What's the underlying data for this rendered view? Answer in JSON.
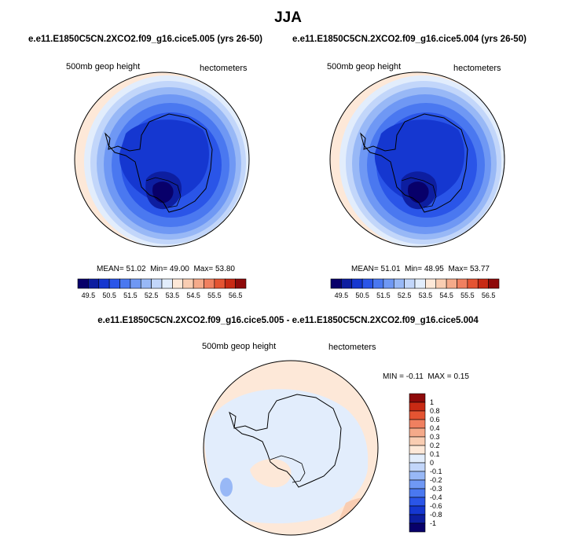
{
  "title": "JJA",
  "panels": [
    {
      "case": "e.e11.E1850C5CN.2XCO2.f09_g16.cice5.005 (yrs 26-50)",
      "variable": "500mb geop height",
      "units": "hectometers",
      "stats": {
        "mean": "51.02",
        "min": "49.00",
        "max": "53.80"
      }
    },
    {
      "case": "e.e11.E1850C5CN.2XCO2.f09_g16.cice5.004 (yrs 26-50)",
      "variable": "500mb geop height",
      "units": "hectometers",
      "stats": {
        "mean": "51.01",
        "min": "48.95",
        "max": "53.77"
      }
    },
    {
      "case": "e.e11.E1850C5CN.2XCO2.f09_g16.cice5.005 - e.e11.E1850C5CN.2XCO2.f09_g16.cice5.004",
      "variable": "500mb geop height",
      "units": "hectometers",
      "stats": {
        "min": "-0.11",
        "max": "0.15"
      }
    }
  ],
  "labels": {
    "mean": "MEAN=",
    "min": "Min=",
    "max": "Max=",
    "min_upper": "MIN =",
    "max_upper": "MAX ="
  },
  "colors": {
    "abs_bins": [
      "#08006a",
      "#0d1ea0",
      "#1537d0",
      "#2a55e8",
      "#4a78f0",
      "#6f98f4",
      "#98b8f6",
      "#c2d6fa",
      "#e2edfc",
      "#fde8d8",
      "#f9cdb2",
      "#f5aa8a",
      "#f08060",
      "#e45432",
      "#c82a14",
      "#8e0a0a"
    ],
    "diff_bins": [
      "#08006a",
      "#0d1ea0",
      "#1537d0",
      "#2a55e8",
      "#4a78f0",
      "#6f98f4",
      "#98b8f6",
      "#c2d6fa",
      "#e2edfc",
      "#fde8d8",
      "#f9cdb2",
      "#f5aa8a",
      "#f08060",
      "#e45432",
      "#c82a14",
      "#8e0a0a"
    ]
  },
  "chart_data": [
    {
      "type": "heatmap",
      "projection": "south-polar-stereographic",
      "title": "e.e11.E1850C5CN.2XCO2.f09_g16.cice5.005 (yrs 26-50)",
      "variable": "500mb geop height",
      "units": "hectometers",
      "mean": 51.02,
      "min": 49.0,
      "max": 53.8,
      "colorbar_ticks": [
        49.5,
        50.5,
        51.5,
        52.5,
        53.5,
        54.5,
        55.5,
        56.5
      ],
      "colorbar_levels": [
        49,
        49.5,
        50,
        50.5,
        51,
        51.5,
        52,
        52.5,
        53,
        53.5,
        54,
        54.5,
        55,
        55.5,
        56,
        56.5
      ]
    },
    {
      "type": "heatmap",
      "projection": "south-polar-stereographic",
      "title": "e.e11.E1850C5CN.2XCO2.f09_g16.cice5.004 (yrs 26-50)",
      "variable": "500mb geop height",
      "units": "hectometers",
      "mean": 51.01,
      "min": 48.95,
      "max": 53.77,
      "colorbar_ticks": [
        49.5,
        50.5,
        51.5,
        52.5,
        53.5,
        54.5,
        55.5,
        56.5
      ],
      "colorbar_levels": [
        49,
        49.5,
        50,
        50.5,
        51,
        51.5,
        52,
        52.5,
        53,
        53.5,
        54,
        54.5,
        55,
        55.5,
        56,
        56.5
      ]
    },
    {
      "type": "heatmap",
      "projection": "south-polar-stereographic",
      "title": "e.e11.E1850C5CN.2XCO2.f09_g16.cice5.005 - e.e11.E1850C5CN.2XCO2.f09_g16.cice5.004",
      "variable": "500mb geop height",
      "units": "hectometers",
      "min": -0.11,
      "max": 0.15,
      "colorbar_ticks": [
        "-1",
        "-0.8",
        "-0.6",
        "-0.4",
        "-0.3",
        "-0.2",
        "-0.1",
        "0",
        "0.1",
        "0.2",
        "0.3",
        "0.4",
        "0.6",
        "0.8",
        "1"
      ]
    }
  ]
}
